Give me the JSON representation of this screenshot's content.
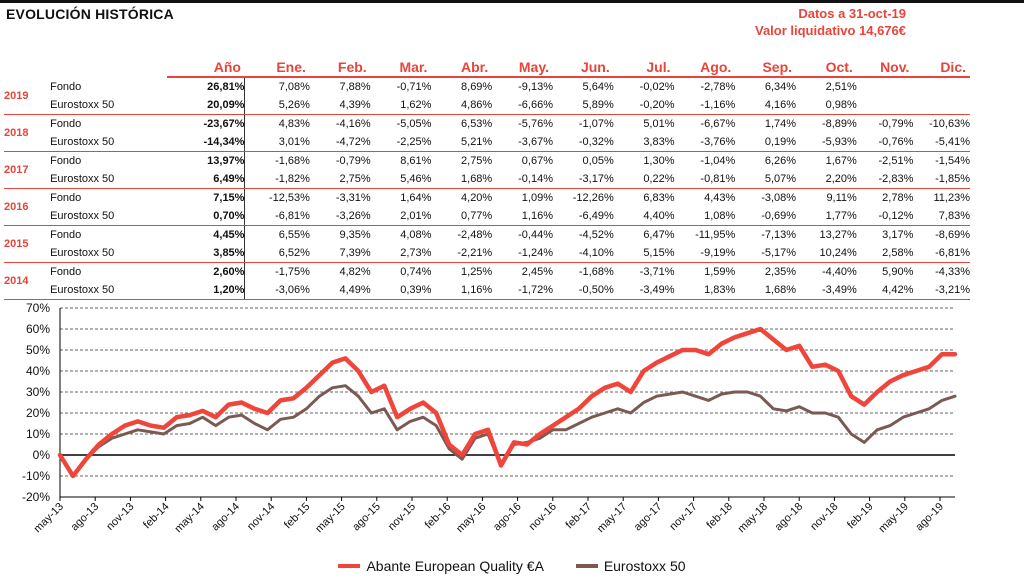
{
  "header": {
    "title": "EVOLUCIÓN HISTÓRICA",
    "date_line": "Datos a 31-oct-19",
    "nav_line": "Valor liquidativo 14,676€"
  },
  "table": {
    "year_header": "Año",
    "months": [
      "Ene.",
      "Feb.",
      "Mar.",
      "Abr.",
      "May.",
      "Jun.",
      "Jul.",
      "Ago.",
      "Sep.",
      "Oct.",
      "Nov.",
      "Dic."
    ],
    "years": [
      {
        "year": "2019",
        "rows": [
          {
            "name": "Fondo",
            "annual": "26,81%",
            "months": [
              "7,08%",
              "7,88%",
              "-0,71%",
              "8,69%",
              "-9,13%",
              "5,64%",
              "-0,02%",
              "-2,78%",
              "6,34%",
              "2,51%",
              "",
              ""
            ]
          },
          {
            "name": "Eurostoxx 50",
            "annual": "20,09%",
            "months": [
              "5,26%",
              "4,39%",
              "1,62%",
              "4,86%",
              "-6,66%",
              "5,89%",
              "-0,20%",
              "-1,16%",
              "4,16%",
              "0,98%",
              "",
              ""
            ]
          }
        ]
      },
      {
        "year": "2018",
        "rows": [
          {
            "name": "Fondo",
            "annual": "-23,67%",
            "months": [
              "4,83%",
              "-4,16%",
              "-5,05%",
              "6,53%",
              "-5,76%",
              "-1,07%",
              "5,01%",
              "-6,67%",
              "1,74%",
              "-8,89%",
              "-0,79%",
              "-10,63%"
            ]
          },
          {
            "name": "Eurostoxx 50",
            "annual": "-14,34%",
            "months": [
              "3,01%",
              "-4,72%",
              "-2,25%",
              "5,21%",
              "-3,67%",
              "-0,32%",
              "3,83%",
              "-3,76%",
              "0,19%",
              "-5,93%",
              "-0,76%",
              "-5,41%"
            ]
          }
        ]
      },
      {
        "year": "2017",
        "rows": [
          {
            "name": "Fondo",
            "annual": "13,97%",
            "months": [
              "-1,68%",
              "-0,79%",
              "8,61%",
              "2,75%",
              "0,67%",
              "0,05%",
              "1,30%",
              "-1,04%",
              "6,26%",
              "1,67%",
              "-2,51%",
              "-1,54%"
            ]
          },
          {
            "name": "Eurostoxx 50",
            "annual": "6,49%",
            "months": [
              "-1,82%",
              "2,75%",
              "5,46%",
              "1,68%",
              "-0,14%",
              "-3,17%",
              "0,22%",
              "-0,81%",
              "5,07%",
              "2,20%",
              "-2,83%",
              "-1,85%"
            ]
          }
        ]
      },
      {
        "year": "2016",
        "rows": [
          {
            "name": "Fondo",
            "annual": "7,15%",
            "months": [
              "-12,53%",
              "-3,31%",
              "1,64%",
              "4,20%",
              "1,09%",
              "-12,26%",
              "6,83%",
              "4,43%",
              "-3,08%",
              "9,11%",
              "2,78%",
              "11,23%"
            ]
          },
          {
            "name": "Eurostoxx 50",
            "annual": "0,70%",
            "months": [
              "-6,81%",
              "-3,26%",
              "2,01%",
              "0,77%",
              "1,16%",
              "-6,49%",
              "4,40%",
              "1,08%",
              "-0,69%",
              "1,77%",
              "-0,12%",
              "7,83%"
            ]
          }
        ]
      },
      {
        "year": "2015",
        "rows": [
          {
            "name": "Fondo",
            "annual": "4,45%",
            "months": [
              "6,55%",
              "9,35%",
              "4,08%",
              "-2,48%",
              "-0,44%",
              "-4,52%",
              "6,47%",
              "-11,95%",
              "-7,13%",
              "13,27%",
              "3,17%",
              "-8,69%"
            ]
          },
          {
            "name": "Eurostoxx 50",
            "annual": "3,85%",
            "months": [
              "6,52%",
              "7,39%",
              "2,73%",
              "-2,21%",
              "-1,24%",
              "-4,10%",
              "5,15%",
              "-9,19%",
              "-5,17%",
              "10,24%",
              "2,58%",
              "-6,81%"
            ]
          }
        ]
      },
      {
        "year": "2014",
        "rows": [
          {
            "name": "Fondo",
            "annual": "2,60%",
            "months": [
              "-1,75%",
              "4,82%",
              "0,74%",
              "1,25%",
              "2,45%",
              "-1,68%",
              "-3,71%",
              "1,59%",
              "2,35%",
              "-4,40%",
              "5,90%",
              "-4,33%"
            ]
          },
          {
            "name": "Eurostoxx 50",
            "annual": "1,20%",
            "months": [
              "-3,06%",
              "4,49%",
              "0,39%",
              "1,16%",
              "-1,72%",
              "-0,50%",
              "-3,49%",
              "1,83%",
              "1,68%",
              "-3,49%",
              "4,42%",
              "-3,21%"
            ]
          }
        ]
      }
    ]
  },
  "colors": {
    "accent": "#e8443a",
    "fund_line": "#f0453b",
    "index_line": "#7a5a52"
  },
  "chart_data": {
    "type": "line",
    "title": "",
    "xlabel": "",
    "ylabel": "",
    "x_ticks": [
      "may-13",
      "ago-13",
      "nov-13",
      "feb-14",
      "may-14",
      "ago-14",
      "nov-14",
      "feb-15",
      "may-15",
      "ago-15",
      "nov-15",
      "feb-16",
      "may-16",
      "ago-16",
      "nov-16",
      "feb-17",
      "may-17",
      "ago-17",
      "nov-17",
      "feb-18",
      "may-18",
      "ago-18",
      "nov-18",
      "feb-19",
      "may-19",
      "ago-19"
    ],
    "y_ticks": [
      "-20%",
      "-10%",
      "0%",
      "10%",
      "20%",
      "30%",
      "40%",
      "50%",
      "60%",
      "70%"
    ],
    "ylim": [
      -20,
      70
    ],
    "grid": true,
    "legend_position": "bottom",
    "series": [
      {
        "name": "Abante European Quality €A",
        "values": [
          0,
          -10,
          -2,
          5,
          10,
          14,
          16,
          14,
          13,
          18,
          19,
          21,
          18,
          24,
          25,
          22,
          20,
          26,
          27,
          32,
          38,
          44,
          46,
          40,
          30,
          33,
          18,
          22,
          25,
          20,
          5,
          0,
          10,
          12,
          -5,
          6,
          5,
          10,
          14,
          18,
          22,
          28,
          32,
          34,
          30,
          40,
          44,
          47,
          50,
          50,
          48,
          53,
          56,
          58,
          60,
          55,
          50,
          52,
          42,
          43,
          40,
          28,
          24,
          30,
          35,
          38,
          40,
          42,
          48,
          48
        ]
      },
      {
        "name": "Eurostoxx 50",
        "values": [
          0,
          -10,
          -2,
          4,
          8,
          10,
          12,
          11,
          10,
          14,
          15,
          18,
          14,
          18,
          19,
          15,
          12,
          17,
          18,
          22,
          28,
          32,
          33,
          28,
          20,
          22,
          12,
          16,
          18,
          14,
          3,
          -2,
          8,
          10,
          -5,
          5,
          6,
          8,
          12,
          12,
          15,
          18,
          20,
          22,
          20,
          25,
          28,
          29,
          30,
          28,
          26,
          29,
          30,
          30,
          28,
          22,
          21,
          23,
          20,
          20,
          18,
          10,
          6,
          12,
          14,
          18,
          20,
          22,
          26,
          28
        ]
      }
    ]
  }
}
